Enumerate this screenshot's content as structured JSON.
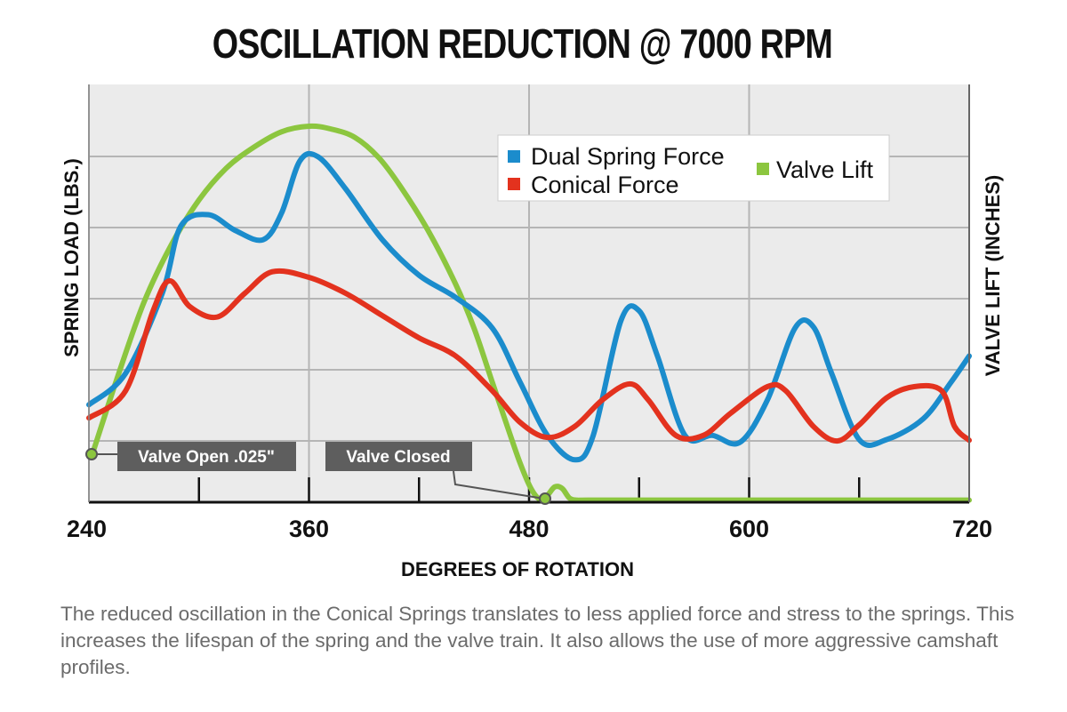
{
  "chart_data": {
    "type": "line",
    "title": "OSCILLATION REDUCTION @ 7000 RPM",
    "xlabel": "DEGREES OF ROTATION",
    "ylabel": "SPRING LOAD (LBS.)",
    "ylabel_right": "VALVE LIFT (INCHES)",
    "xlim": [
      240,
      720
    ],
    "ylim": [
      0,
      6
    ],
    "y_units_note_hidden": null,
    "x_ticks": [
      240,
      360,
      480,
      600,
      720
    ],
    "x_minor_ticks": [
      300,
      420,
      540,
      660
    ],
    "grid": true,
    "legend_position": "top-right",
    "series": [
      {
        "name": "Dual Spring Force",
        "color": "#1b8ccc",
        "axis": "left",
        "x": [
          240,
          260,
          280,
          290,
          305,
          320,
          335,
          345,
          355,
          365,
          380,
          400,
          420,
          440,
          460,
          475,
          490,
          505,
          515,
          530,
          540,
          550,
          565,
          580,
          595,
          610,
          625,
          635,
          645,
          660,
          675,
          695,
          710,
          720
        ],
        "y": [
          1.4,
          1.85,
          3.0,
          3.96,
          4.13,
          3.9,
          3.77,
          4.15,
          4.9,
          4.96,
          4.5,
          3.77,
          3.26,
          2.94,
          2.5,
          1.73,
          0.96,
          0.61,
          0.96,
          2.6,
          2.75,
          2.1,
          0.96,
          0.96,
          0.86,
          1.47,
          2.5,
          2.52,
          1.85,
          0.9,
          0.9,
          1.2,
          1.72,
          2.1
        ]
      },
      {
        "name": "Conical Force",
        "color": "#e3321e",
        "axis": "left",
        "x": [
          240,
          260,
          275,
          284,
          295,
          310,
          325,
          340,
          360,
          380,
          400,
          420,
          440,
          460,
          475,
          490,
          505,
          520,
          535,
          545,
          560,
          575,
          590,
          610,
          620,
          635,
          648,
          660,
          675,
          690,
          705,
          712,
          720
        ],
        "y": [
          1.21,
          1.6,
          2.75,
          3.18,
          2.81,
          2.66,
          3.0,
          3.31,
          3.23,
          3.0,
          2.68,
          2.36,
          2.1,
          1.6,
          1.15,
          0.93,
          1.09,
          1.47,
          1.7,
          1.47,
          0.96,
          0.96,
          1.28,
          1.66,
          1.6,
          1.09,
          0.88,
          1.11,
          1.5,
          1.66,
          1.6,
          1.09,
          0.89
        ]
      },
      {
        "name": "Valve Lift",
        "color": "#8cc63f",
        "axis": "right",
        "x": [
          242,
          255,
          270,
          285,
          300,
          315,
          330,
          345,
          360,
          372,
          385,
          398,
          410,
          425,
          440,
          450,
          460,
          468,
          475,
          481,
          486,
          490,
          494,
          498,
          502,
          506,
          512,
          560,
          620,
          680,
          720
        ],
        "y": [
          0.7,
          1.75,
          2.87,
          3.7,
          4.34,
          4.8,
          5.1,
          5.32,
          5.4,
          5.36,
          5.24,
          4.95,
          4.53,
          3.9,
          3.13,
          2.5,
          1.72,
          1.1,
          0.57,
          0.2,
          0.04,
          0.1,
          0.22,
          0.2,
          0.06,
          0.03,
          0.03,
          0.03,
          0.03,
          0.03,
          0.03
        ]
      }
    ],
    "annotations": [
      {
        "text": "Valve Open .025\"",
        "x": 242,
        "y": 0.7
      },
      {
        "text": "Valve Closed",
        "x": 489,
        "y": 0.04
      }
    ]
  },
  "caption": "The reduced oscillation in the Conical Springs translates to less applied force and stress to the springs. This increases the lifespan of the spring and the valve train. It also allows the use of more aggressive camshaft profiles."
}
